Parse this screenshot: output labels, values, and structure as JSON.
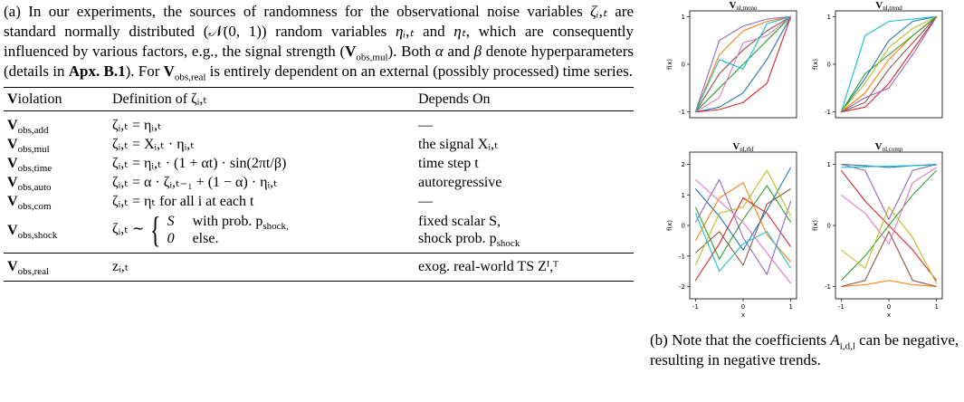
{
  "caption_a": {
    "parts": [
      "(a) In our experiments, the sources of randomness for the observational noise variables ",
      "ζᵢ,ₜ",
      " are standard normally distributed ",
      "(𝒩(0, 1))",
      " random variables ",
      "ηᵢ,ₜ",
      " and ",
      "ηₜ",
      ", which are consequently influenced by various factors, e.g., the signal strength (",
      "V",
      "obs,mul",
      "). Both ",
      "α",
      " and ",
      "β",
      " denote hyperparameters (details in ",
      "Apx. B.1",
      "). For ",
      "V",
      "obs,real",
      " is entirely dependent on an external (possibly processed) time series."
    ]
  },
  "table": {
    "header": [
      "Violation",
      "Definition of ζᵢ,ₜ",
      "Depends On"
    ],
    "rows": [
      {
        "symbol": "V",
        "sub": "obs,add",
        "definition": "ζᵢ,ₜ = ηᵢ,ₜ",
        "depends": "—"
      },
      {
        "symbol": "V",
        "sub": "obs,mul",
        "definition": "ζᵢ,ₜ = Xᵢ,ₜ · ηᵢ,ₜ",
        "depends": "the signal Xᵢ,ₜ"
      },
      {
        "symbol": "V",
        "sub": "obs,time",
        "definition": "ζᵢ,ₜ = ηᵢ,ₜ · (1 + αt) · sin(2πt/β)",
        "depends": "time step t"
      },
      {
        "symbol": "V",
        "sub": "obs,auto",
        "definition": "ζᵢ,ₜ = α · ζᵢ,ₜ₋₁ + (1 − α) · ηᵢ,ₜ",
        "depends": "autoregressive"
      },
      {
        "symbol": "V",
        "sub": "obs,com",
        "definition": "ζᵢ,ₜ = ηₜ    for all i at each t",
        "depends": "—"
      }
    ],
    "shock_row": {
      "symbol": "V",
      "sub": "obs,shock",
      "definition": "ζᵢ,ₜ ∼",
      "cases": [
        {
          "value": "S",
          "cond": "with prob. p",
          "cond_sub": "shock,"
        },
        {
          "value": "0",
          "cond": "else."
        }
      ],
      "depends": [
        {
          "text": "fixed scalar S,"
        },
        {
          "text": "shock prob. p",
          "sub": "shock"
        }
      ]
    },
    "real_row": {
      "symbol": "V",
      "sub": "obs,real",
      "definition": "zᵢ,ₜ",
      "depends": "exog. real-world TS Zᴵ,ᵀ"
    }
  },
  "caption_b": {
    "parts": [
      "(b) Note that the coefficients ",
      "A",
      "i,d,l",
      " can be negative, resulting in negative trends."
    ]
  },
  "chart_data": [
    {
      "type": "line",
      "title": "V",
      "title_sub": "nl,mono",
      "ylabel": "f(x)",
      "x": [
        -1,
        -0.5,
        0,
        0.5,
        1
      ],
      "xlim": [
        -1.12,
        1.12
      ],
      "ylim": [
        -1.12,
        1.12
      ],
      "yticks": [
        -1,
        0,
        1
      ],
      "series": [
        {
          "color": "#1f77b4",
          "values": [
            -1,
            -0.9,
            -0.6,
            0.1,
            1
          ]
        },
        {
          "color": "#ff7f0e",
          "values": [
            -1,
            0.2,
            0.7,
            0.9,
            1
          ]
        },
        {
          "color": "#2ca02c",
          "values": [
            -1,
            -0.5,
            0,
            0.5,
            1
          ]
        },
        {
          "color": "#d62728",
          "values": [
            -1,
            -0.95,
            -0.8,
            -0.4,
            1
          ]
        },
        {
          "color": "#9467bd",
          "values": [
            -1,
            0.5,
            0.8,
            0.95,
            1
          ]
        },
        {
          "color": "#8c564b",
          "values": [
            -1,
            -0.2,
            0.3,
            0.7,
            1
          ]
        },
        {
          "color": "#e377c2",
          "values": [
            -1,
            -0.7,
            0.45,
            0.6,
            1
          ]
        },
        {
          "color": "#17becf",
          "values": [
            -1,
            0.1,
            -0.1,
            0.85,
            1
          ]
        }
      ]
    },
    {
      "type": "line",
      "title": "V",
      "title_sub": "nl,trend",
      "ylabel": "f(x)",
      "x": [
        -1,
        -0.5,
        0,
        0.5,
        1
      ],
      "xlim": [
        -1.12,
        1.12
      ],
      "ylim": [
        -1.12,
        1.12
      ],
      "yticks": [
        -1,
        0,
        1
      ],
      "series": [
        {
          "color": "#1f77b4",
          "values": [
            -1,
            -0.3,
            0.5,
            0.9,
            1
          ]
        },
        {
          "color": "#ff7f0e",
          "values": [
            -1,
            -0.6,
            0.1,
            0.6,
            1
          ]
        },
        {
          "color": "#17becf",
          "values": [
            -1,
            0.6,
            0.9,
            0.95,
            1
          ]
        },
        {
          "color": "#d62728",
          "values": [
            -1,
            -0.9,
            -0.4,
            0.3,
            1
          ]
        },
        {
          "color": "#2ca02c",
          "values": [
            -1,
            -0.2,
            0.2,
            0.6,
            1
          ]
        },
        {
          "color": "#9467bd",
          "values": [
            -1,
            -0.7,
            -0.5,
            0.2,
            1
          ]
        },
        {
          "color": "#bcbd22",
          "values": [
            -1,
            -0.4,
            0.35,
            0.75,
            1
          ]
        },
        {
          "color": "#8c564b",
          "values": [
            -1,
            -0.8,
            -0.1,
            0.45,
            1
          ]
        }
      ]
    },
    {
      "type": "line",
      "title": "V",
      "title_sub": "nl,rbf",
      "ylabel": "f(x)",
      "xlabel": "x",
      "x": [
        -1,
        -0.5,
        0,
        0.5,
        1
      ],
      "xlim": [
        -1.12,
        1.12
      ],
      "ylim": [
        -2.4,
        2.4
      ],
      "xticks": [
        -1,
        0,
        1
      ],
      "yticks": [
        -2,
        -1,
        0,
        1,
        2
      ],
      "series": [
        {
          "color": "#1f77b4",
          "values": [
            1.2,
            0.3,
            -0.8,
            0.5,
            1.9
          ]
        },
        {
          "color": "#ff7f0e",
          "values": [
            -0.5,
            0.9,
            1.4,
            -0.3,
            -1.2
          ]
        },
        {
          "color": "#2ca02c",
          "values": [
            0.6,
            -1.1,
            0.2,
            1.3,
            0.1
          ]
        },
        {
          "color": "#d62728",
          "values": [
            -1.8,
            -0.6,
            0.9,
            0.4,
            -0.7
          ]
        },
        {
          "color": "#9467bd",
          "values": [
            0.1,
            1.5,
            -0.4,
            -1.6,
            0.8
          ]
        },
        {
          "color": "#8c564b",
          "values": [
            -0.9,
            -0.2,
            -1.3,
            0.7,
            1.2
          ]
        },
        {
          "color": "#e377c2",
          "values": [
            1.5,
            0.8,
            0.1,
            -0.9,
            -1.9
          ]
        },
        {
          "color": "#bcbd22",
          "values": [
            -1.3,
            0.4,
            0.6,
            1.8,
            0.3
          ]
        },
        {
          "color": "#17becf",
          "values": [
            0.4,
            -1.5,
            -0.6,
            -0.2,
            -1.4
          ]
        }
      ]
    },
    {
      "type": "line",
      "title": "V",
      "title_sub": "nl,comp",
      "ylabel": "f(x)",
      "xlabel": "x",
      "x": [
        -1,
        -0.5,
        0,
        0.5,
        1
      ],
      "xlim": [
        -1.12,
        1.12
      ],
      "ylim": [
        -1.2,
        1.2
      ],
      "xticks": [
        -1,
        0,
        1
      ],
      "yticks": [
        -1,
        0,
        1
      ],
      "series": [
        {
          "color": "#1f77b4",
          "values": [
            1,
            0.98,
            0.95,
            0.98,
            1
          ]
        },
        {
          "color": "#ff7f0e",
          "values": [
            -1,
            -0.97,
            -0.9,
            -0.97,
            -1
          ]
        },
        {
          "color": "#2ca02c",
          "values": [
            -0.9,
            -0.5,
            0,
            0.5,
            0.9
          ]
        },
        {
          "color": "#d62728",
          "values": [
            0.9,
            0.4,
            0,
            -0.4,
            -0.9
          ]
        },
        {
          "color": "#9467bd",
          "values": [
            1,
            0.9,
            0.1,
            0.9,
            1
          ]
        },
        {
          "color": "#8c564b",
          "values": [
            -1,
            -0.9,
            -0.1,
            -0.9,
            -1
          ]
        },
        {
          "color": "#e377c2",
          "values": [
            0.5,
            0.2,
            -0.3,
            0.7,
            0.95
          ]
        },
        {
          "color": "#bcbd22",
          "values": [
            -0.4,
            -0.7,
            0.3,
            -0.2,
            -0.95
          ]
        },
        {
          "color": "#17becf",
          "values": [
            0.95,
            0.96,
            0.97,
            0.98,
            0.99
          ]
        }
      ]
    }
  ]
}
